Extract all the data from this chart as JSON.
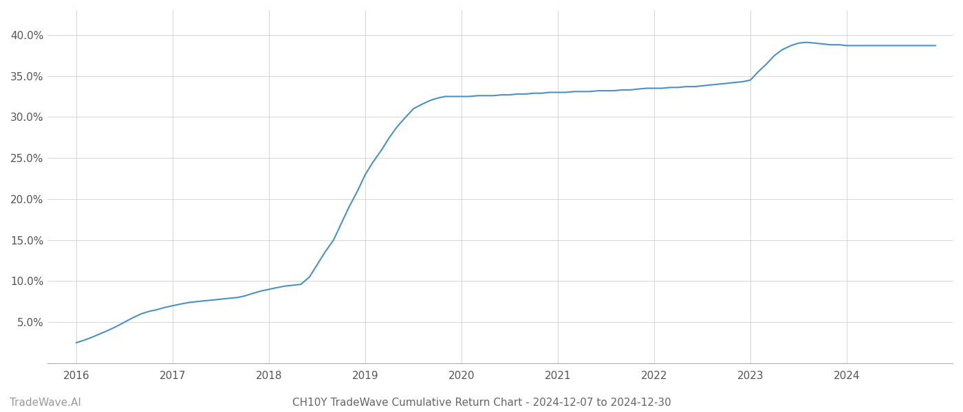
{
  "x": [
    2016.0,
    2016.08,
    2016.17,
    2016.25,
    2016.33,
    2016.42,
    2016.5,
    2016.58,
    2016.67,
    2016.75,
    2016.83,
    2016.92,
    2017.0,
    2017.08,
    2017.17,
    2017.25,
    2017.33,
    2017.42,
    2017.5,
    2017.58,
    2017.67,
    2017.75,
    2017.83,
    2017.92,
    2018.0,
    2018.08,
    2018.17,
    2018.25,
    2018.33,
    2018.42,
    2018.5,
    2018.58,
    2018.67,
    2018.75,
    2018.83,
    2018.92,
    2019.0,
    2019.08,
    2019.17,
    2019.25,
    2019.33,
    2019.42,
    2019.5,
    2019.58,
    2019.67,
    2019.75,
    2019.83,
    2019.92,
    2020.0,
    2020.08,
    2020.17,
    2020.25,
    2020.33,
    2020.42,
    2020.5,
    2020.58,
    2020.67,
    2020.75,
    2020.83,
    2020.92,
    2021.0,
    2021.08,
    2021.17,
    2021.25,
    2021.33,
    2021.42,
    2021.5,
    2021.58,
    2021.67,
    2021.75,
    2021.83,
    2021.92,
    2022.0,
    2022.08,
    2022.17,
    2022.25,
    2022.33,
    2022.42,
    2022.5,
    2022.58,
    2022.67,
    2022.75,
    2022.83,
    2022.92,
    2023.0,
    2023.08,
    2023.17,
    2023.25,
    2023.33,
    2023.42,
    2023.5,
    2023.58,
    2023.67,
    2023.75,
    2023.83,
    2023.92,
    2024.0,
    2024.08,
    2024.17,
    2024.25,
    2024.33,
    2024.42,
    2024.5,
    2024.58,
    2024.67,
    2024.75,
    2024.83,
    2024.92
  ],
  "y": [
    2.5,
    2.8,
    3.2,
    3.6,
    4.0,
    4.5,
    5.0,
    5.5,
    6.0,
    6.3,
    6.5,
    6.8,
    7.0,
    7.2,
    7.4,
    7.5,
    7.6,
    7.7,
    7.8,
    7.9,
    8.0,
    8.2,
    8.5,
    8.8,
    9.0,
    9.2,
    9.4,
    9.5,
    9.6,
    10.5,
    12.0,
    13.5,
    15.0,
    17.0,
    19.0,
    21.0,
    23.0,
    24.5,
    26.0,
    27.5,
    28.8,
    30.0,
    31.0,
    31.5,
    32.0,
    32.3,
    32.5,
    32.5,
    32.5,
    32.5,
    32.6,
    32.6,
    32.6,
    32.7,
    32.7,
    32.8,
    32.8,
    32.9,
    32.9,
    33.0,
    33.0,
    33.0,
    33.1,
    33.1,
    33.1,
    33.2,
    33.2,
    33.2,
    33.3,
    33.3,
    33.4,
    33.5,
    33.5,
    33.5,
    33.6,
    33.6,
    33.7,
    33.7,
    33.8,
    33.9,
    34.0,
    34.1,
    34.2,
    34.3,
    34.5,
    35.5,
    36.5,
    37.5,
    38.2,
    38.7,
    39.0,
    39.1,
    39.0,
    38.9,
    38.8,
    38.8,
    38.7,
    38.7,
    38.7,
    38.7,
    38.7,
    38.7,
    38.7,
    38.7,
    38.7,
    38.7,
    38.7,
    38.7
  ],
  "line_color": "#4a90c4",
  "line_width": 1.5,
  "background_color": "#ffffff",
  "grid_color": "#cccccc",
  "title": "CH10Y TradeWave Cumulative Return Chart - 2024-12-07 to 2024-12-30",
  "title_fontsize": 11,
  "title_color": "#666666",
  "watermark": "TradeWave.AI",
  "watermark_fontsize": 11,
  "watermark_color": "#999999",
  "yticks": [
    5.0,
    10.0,
    15.0,
    20.0,
    25.0,
    30.0,
    35.0,
    40.0
  ],
  "xticks": [
    2016,
    2017,
    2018,
    2019,
    2020,
    2021,
    2022,
    2023,
    2024
  ],
  "xlim": [
    2015.7,
    2025.1
  ],
  "ylim": [
    0.0,
    43.0
  ]
}
